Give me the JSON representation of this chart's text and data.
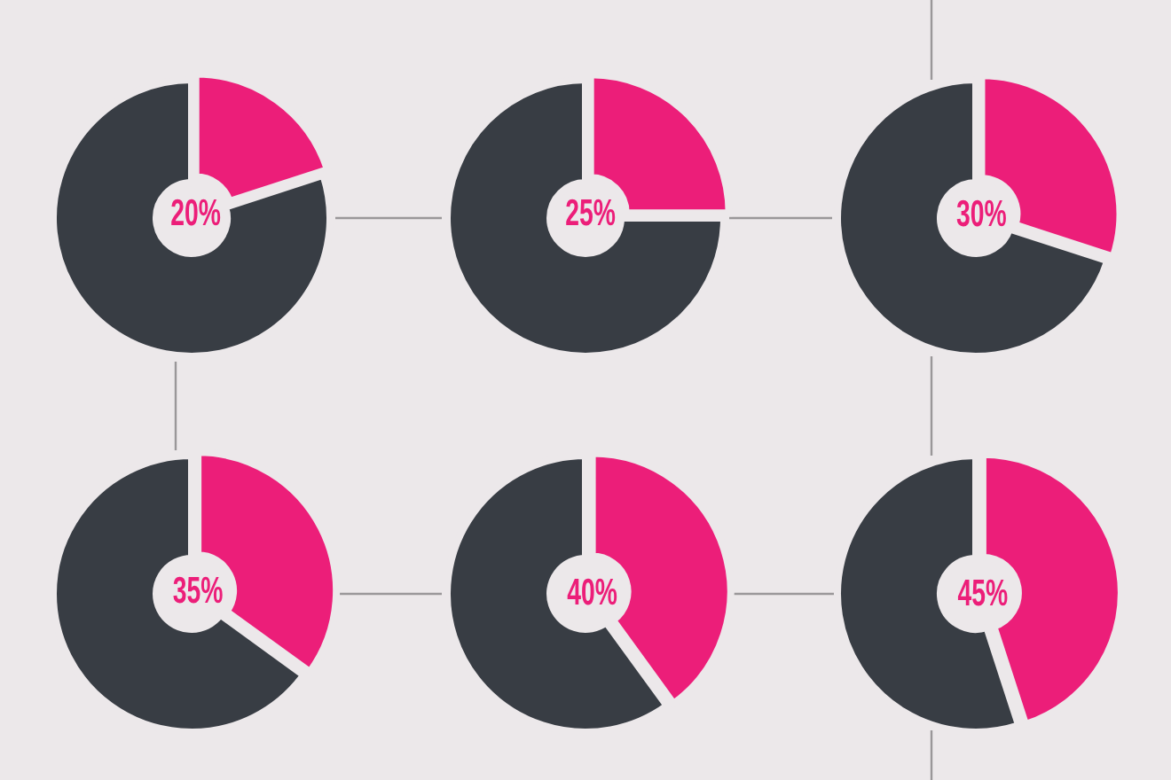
{
  "chart_data": [
    {
      "type": "donut",
      "categories": [
        null,
        null
      ],
      "values": [
        20,
        80
      ],
      "colors": [
        "#ec1e79",
        "#383d44"
      ],
      "value_labels": [
        "20%",
        null
      ]
    },
    {
      "type": "donut",
      "categories": [
        null,
        null
      ],
      "values": [
        25,
        75
      ],
      "colors": [
        "#ec1e79",
        "#383d44"
      ],
      "value_labels": [
        "25%",
        null
      ]
    },
    {
      "type": "donut",
      "categories": [
        null,
        null
      ],
      "values": [
        30,
        70
      ],
      "colors": [
        "#ec1e79",
        "#383d44"
      ],
      "value_labels": [
        "30%",
        null
      ]
    },
    {
      "type": "donut",
      "categories": [
        null,
        null
      ],
      "values": [
        35,
        65
      ],
      "colors": [
        "#ec1e79",
        "#383d44"
      ],
      "value_labels": [
        "35%",
        null
      ]
    },
    {
      "type": "donut",
      "categories": [
        null,
        null
      ],
      "values": [
        40,
        60
      ],
      "colors": [
        "#ec1e79",
        "#383d44"
      ],
      "value_labels": [
        "40%",
        null
      ]
    },
    {
      "type": "donut",
      "categories": [
        null,
        null
      ],
      "values": [
        45,
        55
      ],
      "colors": [
        "#ec1e79",
        "#383d44"
      ],
      "value_labels": [
        "45%",
        null
      ]
    }
  ]
}
